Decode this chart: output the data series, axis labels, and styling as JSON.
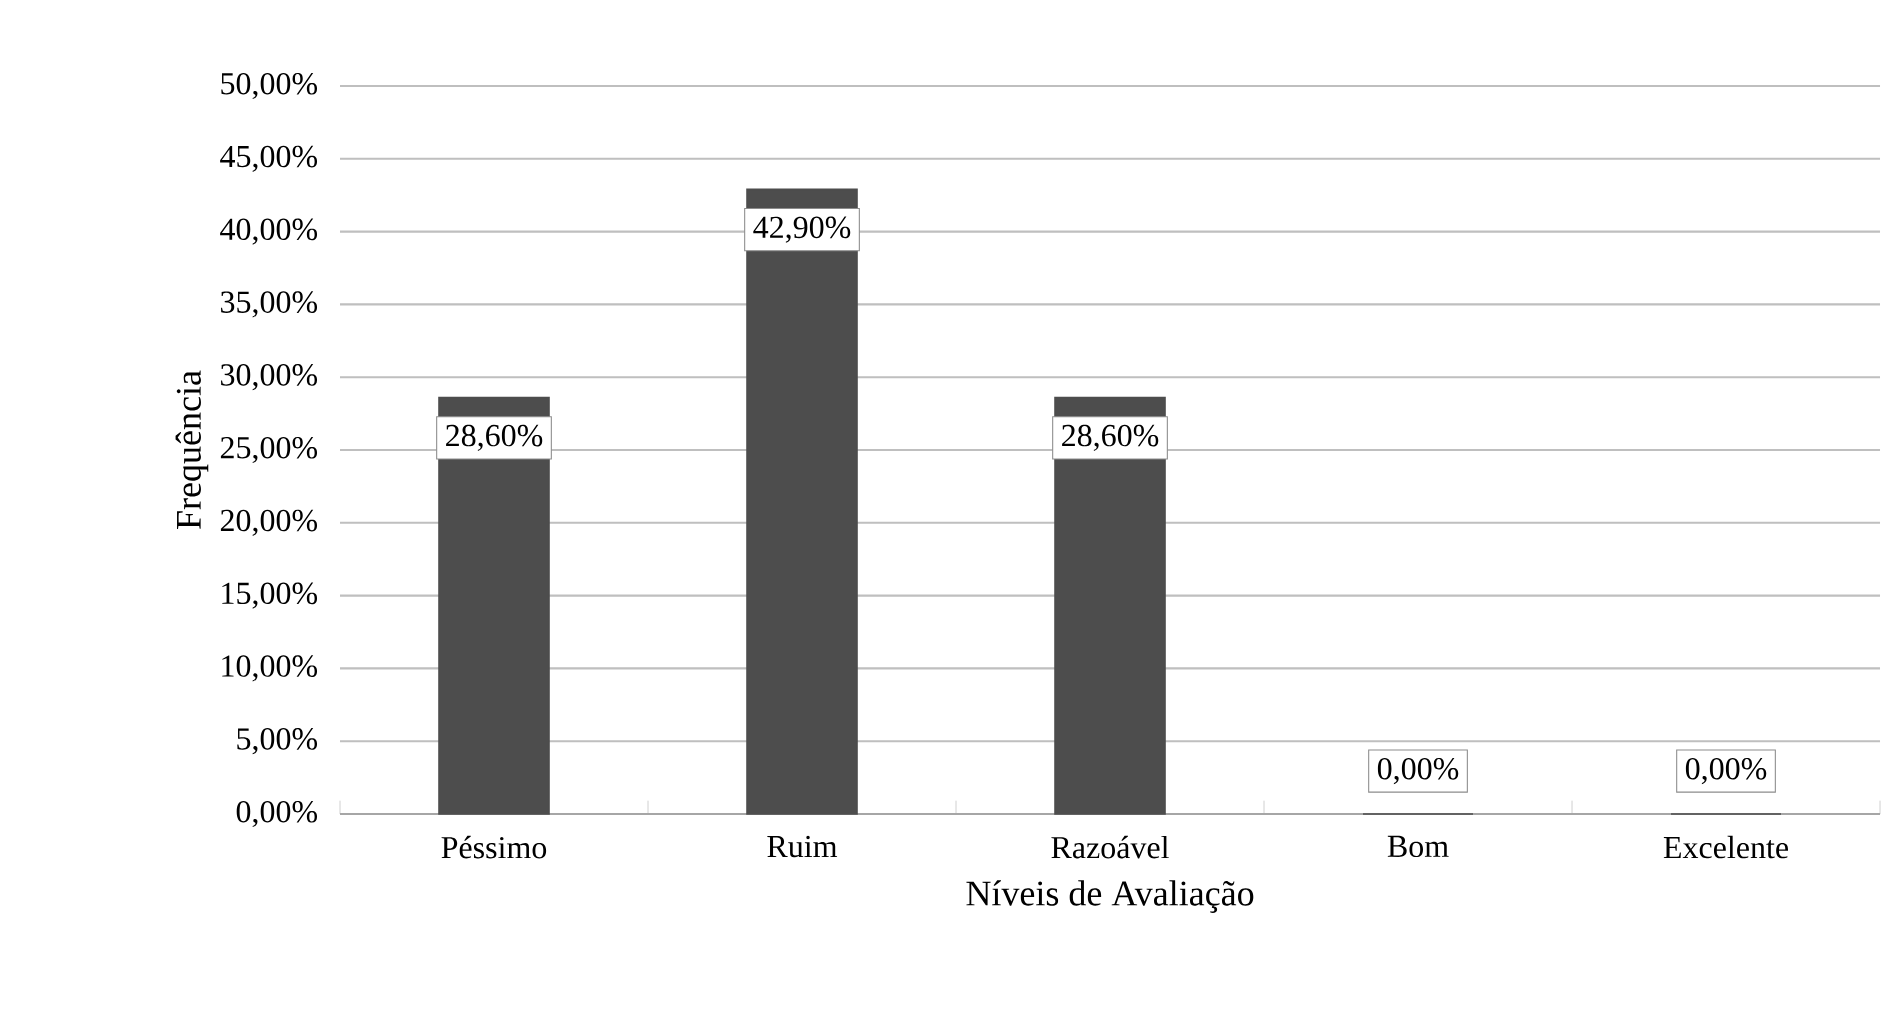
{
  "chart_data": {
    "type": "bar",
    "xlabel": "Níveis de Avaliação",
    "ylabel": "Frequência",
    "categories": [
      "Péssimo",
      "Ruim",
      "Razoável",
      "Bom",
      "Excelente"
    ],
    "values": [
      28.6,
      42.9,
      28.6,
      0,
      0
    ],
    "value_labels": [
      "28,60%",
      "42,90%",
      "28,60%",
      "0,00%",
      "0,00%"
    ],
    "color": "#4d4d4d",
    "ylim": [
      0,
      50
    ],
    "yticks": [
      {
        "value": 0,
        "label": "0,00%"
      },
      {
        "value": 5,
        "label": "5,00%"
      },
      {
        "value": 10,
        "label": "10,00%"
      },
      {
        "value": 15,
        "label": "15,00%"
      },
      {
        "value": 20,
        "label": "20,00%"
      },
      {
        "value": 25,
        "label": "25,00%"
      },
      {
        "value": 30,
        "label": "30,00%"
      },
      {
        "value": 35,
        "label": "35,00%"
      },
      {
        "value": 40,
        "label": "40,00%"
      },
      {
        "value": 45,
        "label": "45,00%"
      },
      {
        "value": 50,
        "label": "50,00%"
      }
    ],
    "grid": "y"
  }
}
